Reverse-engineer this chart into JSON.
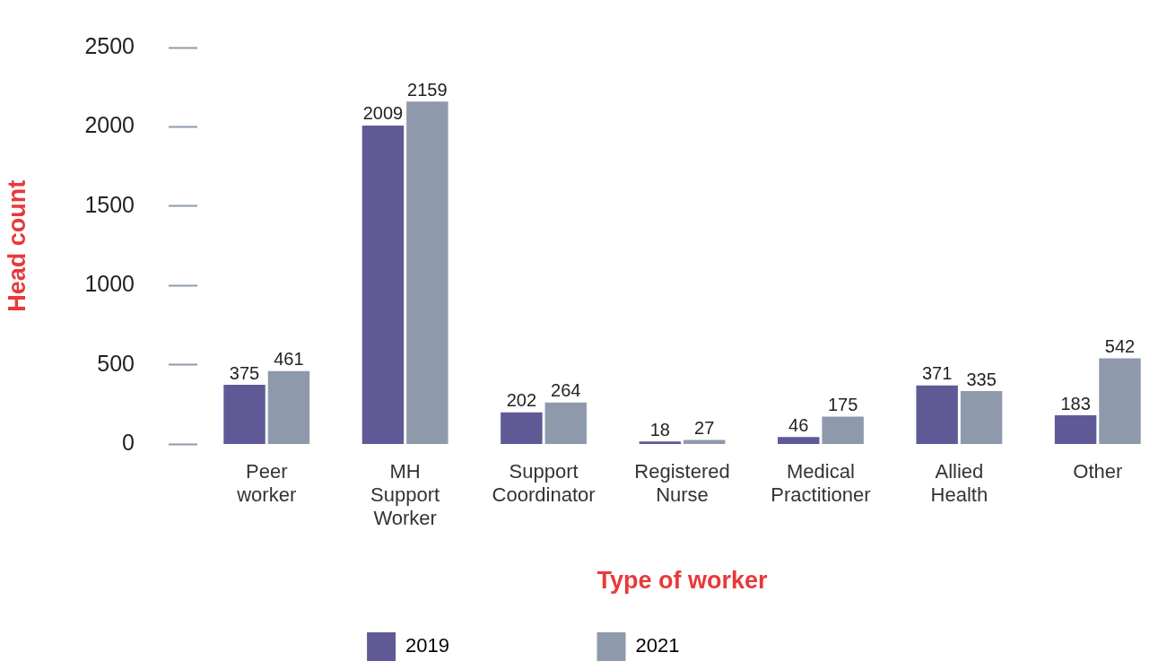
{
  "chart_data": {
    "type": "bar",
    "xlabel": "Type of worker",
    "ylabel": "Head count",
    "categories": [
      "Peer worker",
      "MH Support Worker",
      "Support Coordinator",
      "Registered Nurse",
      "Medical Practitioner",
      "Allied Health",
      "Other"
    ],
    "series": [
      {
        "name": "2019",
        "color": "#5f5a96",
        "values": [
          375,
          2009,
          202,
          18,
          46,
          371,
          183
        ]
      },
      {
        "name": "2021",
        "color": "#8e9aab",
        "values": [
          461,
          2159,
          264,
          27,
          175,
          335,
          542
        ]
      }
    ],
    "ylim": [
      0,
      2500
    ],
    "yticks": [
      0,
      500,
      1000,
      1500,
      2000,
      2500
    ],
    "grid": false,
    "legend": "bottom",
    "data_labels": true
  }
}
